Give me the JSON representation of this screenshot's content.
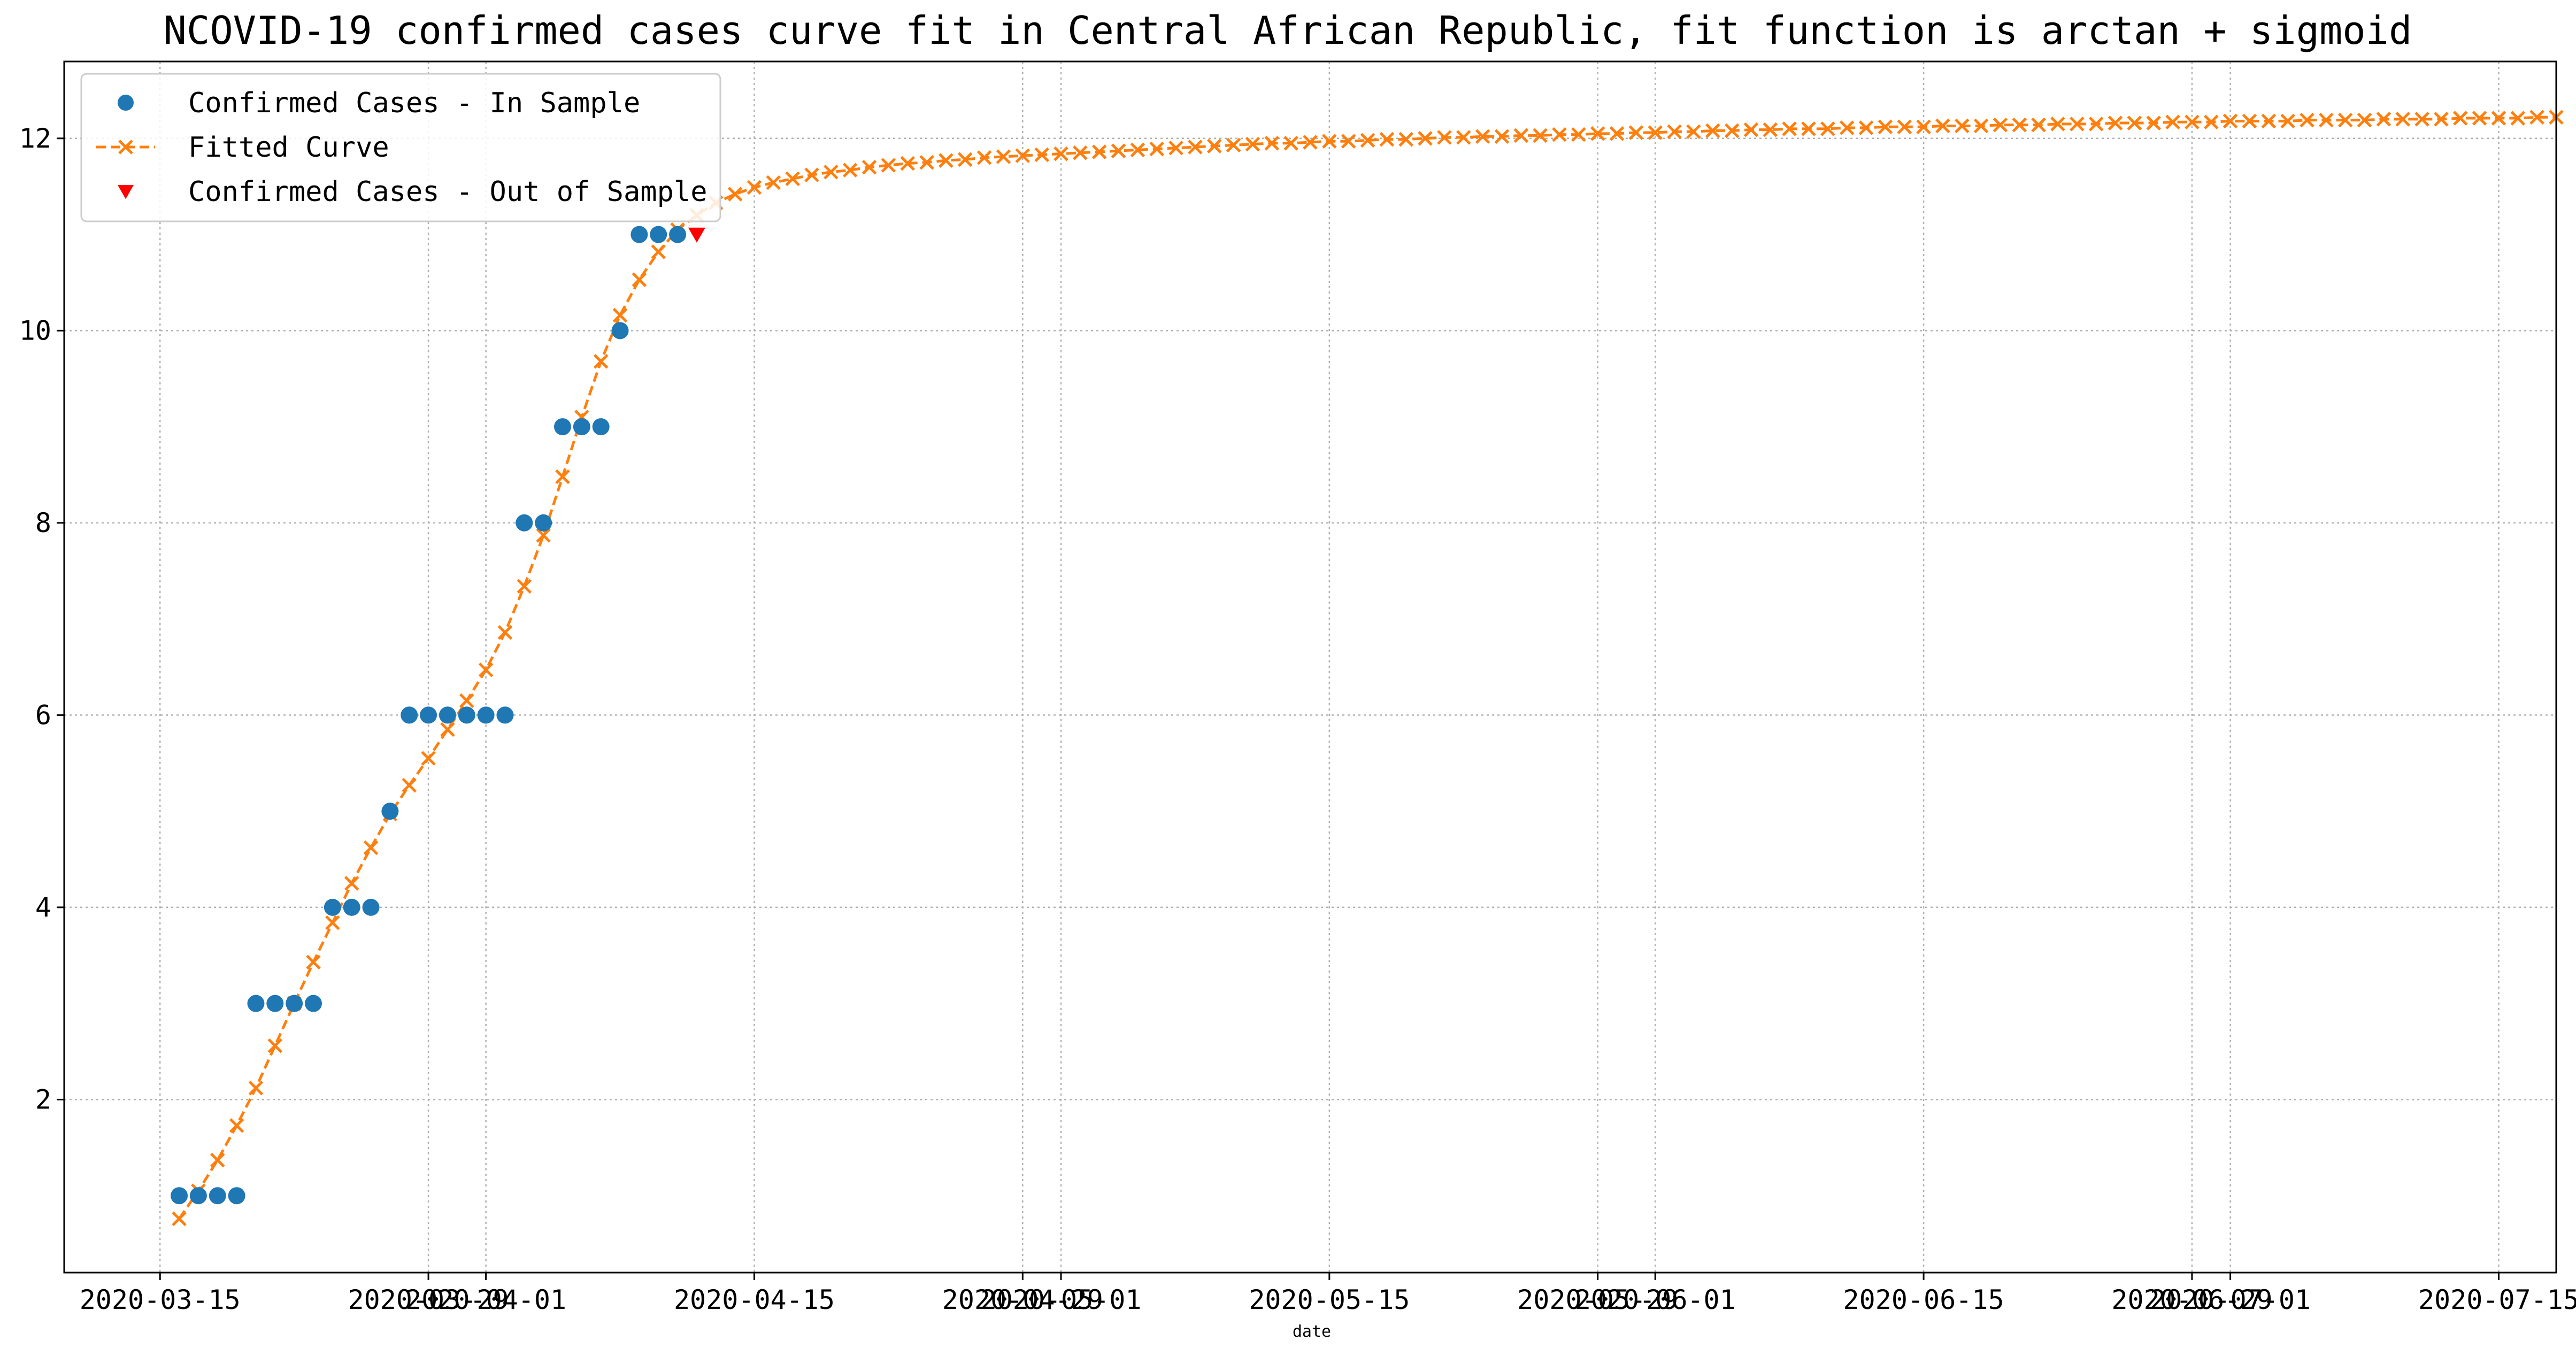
{
  "chart_data": {
    "type": "scatter",
    "title": "NCOVID-19 confirmed cases curve fit in Central African Republic, fit function is arctan + sigmoid",
    "xlabel": "date",
    "ylabel": "",
    "xlim": [
      "2020-03-10",
      "2020-07-18"
    ],
    "ylim": [
      0.2,
      12.8
    ],
    "grid": true,
    "legend_position": "top-left",
    "x_ticks": [
      "2020-03-15",
      "2020-03-29",
      "2020-04-01",
      "2020-04-15",
      "2020-04-29",
      "2020-05-01",
      "2020-05-15",
      "2020-05-29",
      "2020-06-01",
      "2020-06-15",
      "2020-06-29",
      "2020-07-01",
      "2020-07-15"
    ],
    "x_tick_labels": [
      "2020-03-15",
      "2020-03-29",
      "2020-04-01",
      "2020-04-15",
      "2020-04-29",
      "2020-05-01",
      "2020-05-15",
      "2020-05-29",
      "2020-06-01",
      "2020-06-15",
      "2020-06-29",
      "2020-07-01",
      "2020-07-15"
    ],
    "y_ticks": [
      2,
      4,
      6,
      8,
      10,
      12
    ],
    "y_tick_labels": [
      "2",
      "4",
      "6",
      "8",
      "10",
      "12"
    ],
    "series": [
      {
        "name": "Confirmed Cases - In Sample",
        "style": "points",
        "color": "#1f77b4",
        "x": [
          "2020-03-16",
          "2020-03-17",
          "2020-03-18",
          "2020-03-19",
          "2020-03-20",
          "2020-03-21",
          "2020-03-22",
          "2020-03-23",
          "2020-03-24",
          "2020-03-25",
          "2020-03-26",
          "2020-03-27",
          "2020-03-28",
          "2020-03-29",
          "2020-03-30",
          "2020-03-31",
          "2020-04-01",
          "2020-04-02",
          "2020-04-03",
          "2020-04-04",
          "2020-04-05",
          "2020-04-06",
          "2020-04-07",
          "2020-04-08",
          "2020-04-09",
          "2020-04-10",
          "2020-04-11"
        ],
        "y": [
          1,
          1,
          1,
          1,
          3,
          3,
          3,
          3,
          4,
          4,
          4,
          5,
          6,
          6,
          6,
          6,
          6,
          6,
          8,
          8,
          9,
          9,
          9,
          10,
          11,
          11,
          11
        ]
      },
      {
        "name": "Fitted Curve",
        "style": "dashed-line-x",
        "color": "#ff7f0e",
        "x_start": "2020-03-16",
        "x_step_days": 1,
        "y": [
          0.76,
          1.05,
          1.37,
          1.73,
          2.12,
          2.56,
          3.0,
          3.43,
          3.84,
          4.25,
          4.62,
          4.97,
          5.27,
          5.55,
          5.85,
          6.15,
          6.47,
          6.86,
          7.34,
          7.87,
          8.48,
          9.1,
          9.68,
          10.16,
          10.53,
          10.82,
          11.05,
          11.2,
          11.33,
          11.42,
          11.49,
          11.54,
          11.58,
          11.62,
          11.65,
          11.67,
          11.7,
          11.72,
          11.74,
          11.75,
          11.77,
          11.78,
          11.8,
          11.81,
          11.82,
          11.83,
          11.84,
          11.85,
          11.86,
          11.87,
          11.88,
          11.89,
          11.9,
          11.91,
          11.92,
          11.93,
          11.94,
          11.95,
          11.95,
          11.96,
          11.97,
          11.97,
          11.98,
          11.99,
          11.99,
          12.0,
          12.01,
          12.01,
          12.02,
          12.02,
          12.03,
          12.03,
          12.04,
          12.04,
          12.05,
          12.05,
          12.06,
          12.06,
          12.07,
          12.07,
          12.08,
          12.08,
          12.09,
          12.09,
          12.1,
          12.1,
          12.1,
          12.11,
          12.11,
          12.12,
          12.12,
          12.12,
          12.13,
          12.13,
          12.13,
          12.14,
          12.14,
          12.14,
          12.15,
          12.15,
          12.15,
          12.16,
          12.16,
          12.16,
          12.17,
          12.17,
          12.17,
          12.18,
          12.18,
          12.18,
          12.18,
          12.19,
          12.19,
          12.19,
          12.19,
          12.2,
          12.2,
          12.2,
          12.2,
          12.21,
          12.21,
          12.21,
          12.21,
          12.22,
          12.22
        ]
      },
      {
        "name": "Confirmed Cases - Out of Sample",
        "style": "triangle-down",
        "color": "#ff0000",
        "x": [
          "2020-04-12"
        ],
        "y": [
          11
        ]
      }
    ]
  }
}
